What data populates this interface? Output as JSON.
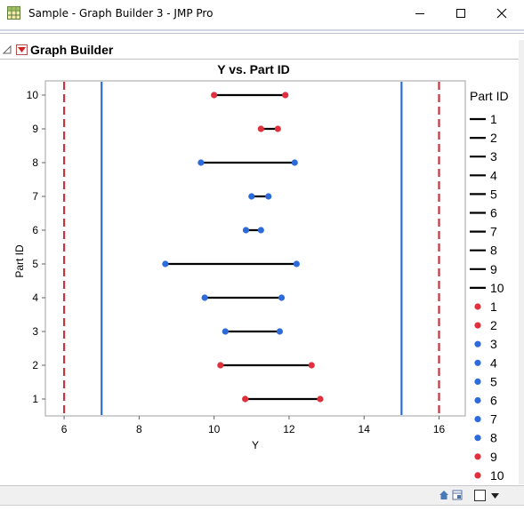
{
  "window": {
    "title": "Sample - Graph Builder 3 - JMP Pro",
    "icon": "jmp-data-table-icon"
  },
  "outline": {
    "title": "Graph Builder"
  },
  "chart_data": {
    "type": "line",
    "title": "Y vs. Part ID",
    "xlabel": "Y",
    "ylabel": "Part ID",
    "xlim": [
      5.5,
      16.7
    ],
    "x_ticks": [
      "6",
      "8",
      "10",
      "12",
      "14",
      "16"
    ],
    "y_ticks": [
      "1",
      "2",
      "3",
      "4",
      "5",
      "6",
      "7",
      "8",
      "9",
      "10"
    ],
    "reference_lines": [
      {
        "value": 6,
        "style": "dashed",
        "color": "#c8343f"
      },
      {
        "value": 7,
        "style": "solid",
        "color": "#2d6fd0"
      },
      {
        "value": 15,
        "style": "solid",
        "color": "#2d6fd0"
      },
      {
        "value": 16,
        "style": "dashed",
        "color": "#c8343f"
      }
    ],
    "series": [
      {
        "part": 1,
        "low": 10.83,
        "high": 12.83,
        "color": "#e0303e"
      },
      {
        "part": 2,
        "low": 10.17,
        "high": 12.6,
        "color": "#e0303e"
      },
      {
        "part": 3,
        "low": 10.3,
        "high": 11.75,
        "color": "#2d6bdb"
      },
      {
        "part": 4,
        "low": 9.75,
        "high": 11.8,
        "color": "#2d6bdb"
      },
      {
        "part": 5,
        "low": 8.7,
        "high": 12.2,
        "color": "#2d6bdb"
      },
      {
        "part": 6,
        "low": 10.85,
        "high": 11.25,
        "color": "#2d6bdb"
      },
      {
        "part": 7,
        "low": 11.0,
        "high": 11.45,
        "color": "#2d6bdb"
      },
      {
        "part": 8,
        "low": 9.65,
        "high": 12.15,
        "color": "#2d6bdb"
      },
      {
        "part": 9,
        "low": 11.25,
        "high": 11.7,
        "color": "#e0303e"
      },
      {
        "part": 10,
        "low": 10.0,
        "high": 11.9,
        "color": "#e0303e"
      }
    ],
    "legend": {
      "title": "Part ID",
      "placement": "right",
      "line_entries": [
        "1",
        "2",
        "3",
        "4",
        "5",
        "6",
        "7",
        "8",
        "9",
        "10"
      ],
      "point_entries": [
        {
          "label": "1",
          "color": "#e0303e"
        },
        {
          "label": "2",
          "color": "#e0303e"
        },
        {
          "label": "3",
          "color": "#2d6bdb"
        },
        {
          "label": "4",
          "color": "#2d6bdb"
        },
        {
          "label": "5",
          "color": "#2d6bdb"
        },
        {
          "label": "6",
          "color": "#2d6bdb"
        },
        {
          "label": "7",
          "color": "#2d6bdb"
        },
        {
          "label": "8",
          "color": "#2d6bdb"
        },
        {
          "label": "9",
          "color": "#e0303e"
        },
        {
          "label": "10",
          "color": "#e0303e"
        }
      ]
    },
    "grid": false
  }
}
